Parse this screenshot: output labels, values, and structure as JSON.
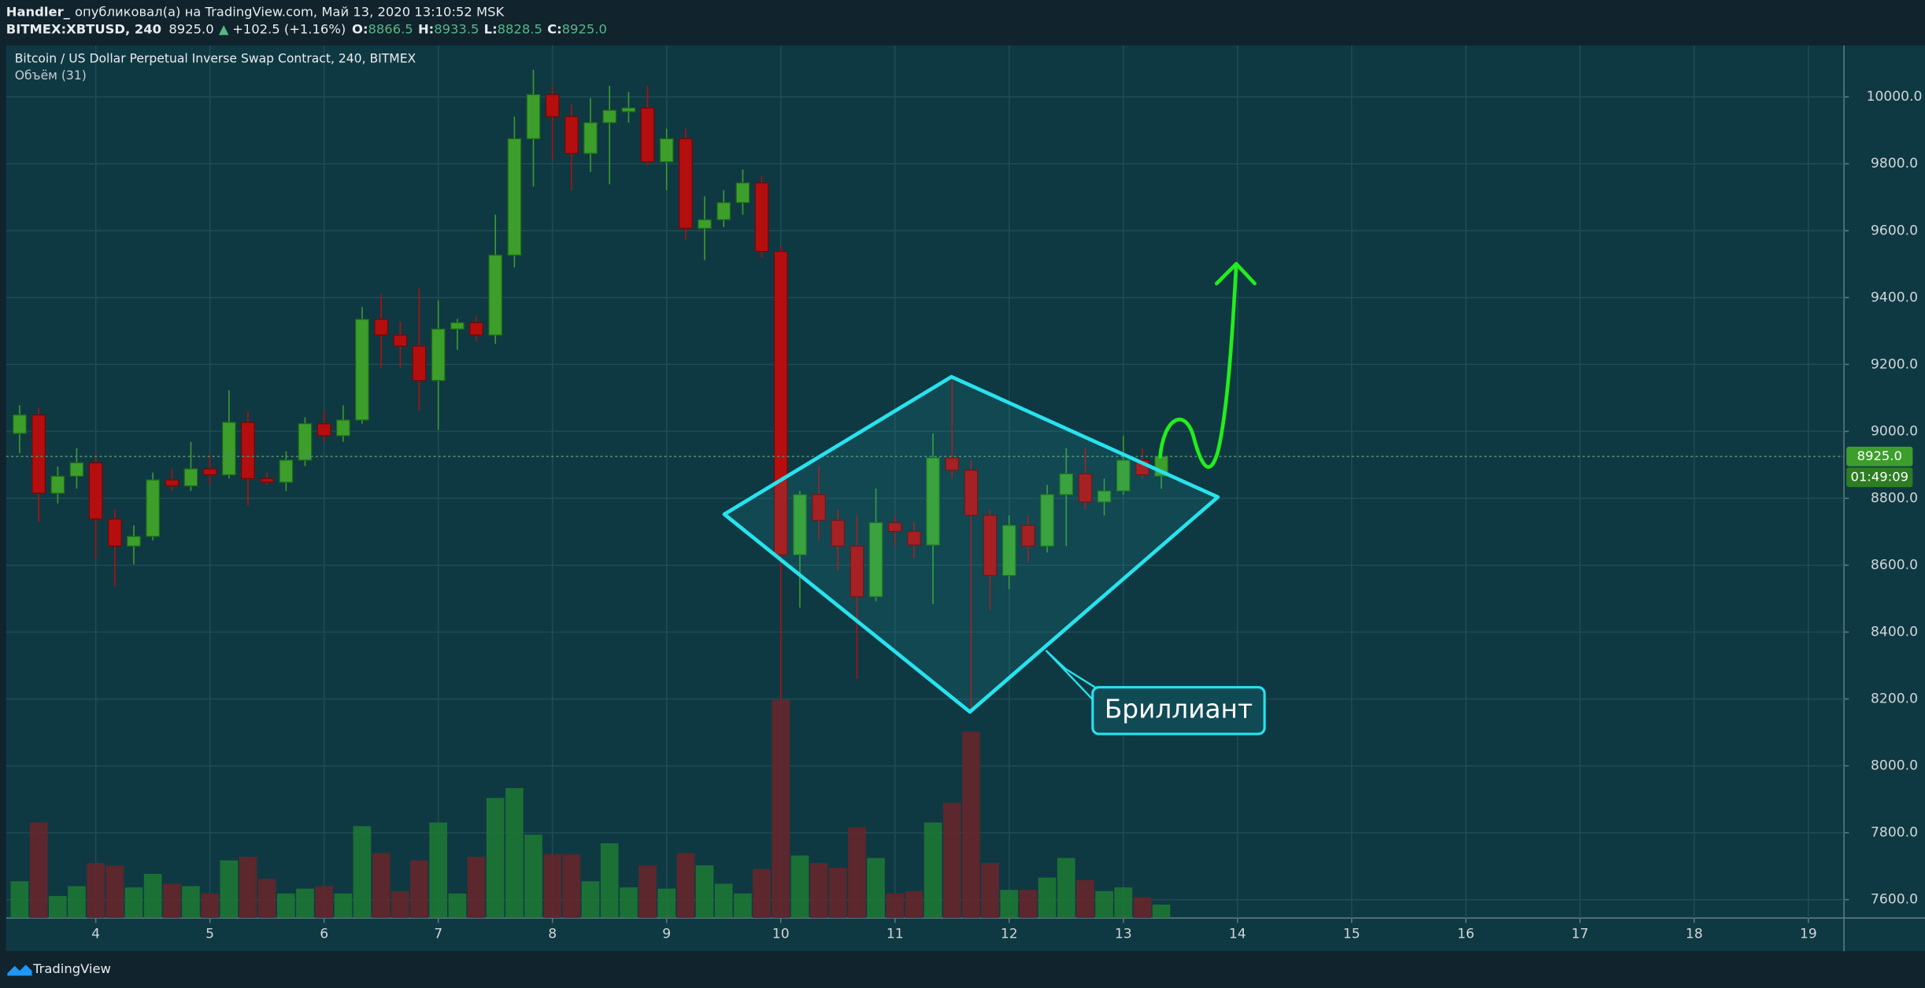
{
  "header": {
    "author": "Handler_",
    "text": "опубликовал(а) на TradingView.com, Май 13, 2020 13:10:52 MSK",
    "symbol": "BITMEX:XBTUSD, 240",
    "last": "8925.0",
    "change_arrow": "▲",
    "change": "+102.5 (+1.16%)",
    "ohlc": [
      {
        "label": "O:",
        "value": "8866.5"
      },
      {
        "label": "H:",
        "value": "8933.5"
      },
      {
        "label": "L:",
        "value": "8828.5"
      },
      {
        "label": "C:",
        "value": "8925.0"
      }
    ]
  },
  "chart_data": {
    "type": "candlestick",
    "title": "Bitcoin / US Dollar Perpetual Inverse Swap Contract, 240, BITMEX",
    "volume_label": "Объём (31)",
    "x": [
      3.333,
      3.5,
      3.667,
      3.833,
      4,
      4.167,
      4.333,
      4.5,
      4.667,
      4.833,
      5,
      5.167,
      5.333,
      5.5,
      5.667,
      5.833,
      6,
      6.167,
      6.333,
      6.5,
      6.667,
      6.833,
      7,
      7.167,
      7.333,
      7.5,
      7.667,
      7.833,
      8,
      8.167,
      8.333,
      8.5,
      8.667,
      8.833,
      9,
      9.167,
      9.333,
      9.5,
      9.667,
      9.833,
      10,
      10.167,
      10.333,
      10.5,
      10.667,
      10.833,
      11,
      11.167,
      11.333,
      11.5,
      11.667,
      11.833,
      12,
      12.167,
      12.333,
      12.5,
      12.667,
      12.833,
      13,
      13.167,
      13.333
    ],
    "open": [
      8994,
      9049,
      8815,
      8866,
      8906,
      8738,
      8657,
      8686,
      8855,
      8837,
      8888,
      8870,
      9027,
      8859,
      8848,
      8914,
      9023,
      8987,
      9034,
      9335,
      9288,
      9255,
      9152,
      9306,
      9325,
      9288,
      9527,
      9875,
      10007,
      9941,
      9831,
      9923,
      9956,
      9967,
      9806,
      9875,
      9607,
      9633,
      9684,
      9743,
      9538,
      8631,
      8811,
      8734,
      8657,
      8506,
      8727,
      8701,
      8660,
      8921,
      8884,
      8749,
      8569,
      8719,
      8657,
      8811,
      8873,
      8789,
      8822,
      8914,
      8866.5
    ],
    "high": [
      9078,
      9071,
      8895,
      8950,
      8932,
      8767,
      8719,
      8877,
      8888,
      8969,
      8932,
      9123,
      9060,
      8877,
      8940,
      9042,
      9060,
      9078,
      9372,
      9409,
      9328,
      9427,
      9391,
      9336,
      9343,
      9648,
      9941,
      10081,
      10033,
      9978,
      9996,
      10033,
      10015,
      10033,
      9905,
      9905,
      9703,
      9721,
      9783,
      9765,
      9556,
      8822,
      8895,
      8767,
      8749,
      8829,
      8749,
      8730,
      8994,
      9159,
      8914,
      8767,
      8749,
      8749,
      8840,
      8950,
      8950,
      8859,
      8987,
      8950,
      8933.5
    ],
    "low": [
      8935,
      8730,
      8785,
      8829,
      8620,
      8536,
      8602,
      8675,
      8822,
      8822,
      8841,
      8859,
      8778,
      8841,
      8822,
      8896,
      8969,
      8969,
      9023,
      9189,
      9189,
      9060,
      9005,
      9244,
      9270,
      9262,
      9490,
      9732,
      9813,
      9721,
      9776,
      9739,
      9923,
      9795,
      9721,
      9574,
      9512,
      9611,
      9648,
      9519,
      8198,
      8473,
      8675,
      8583,
      8260,
      8492,
      8657,
      8620,
      8484,
      8859,
      8161,
      8466,
      8528,
      8609,
      8638,
      8657,
      8767,
      8749,
      8811,
      8859,
      8828.5
    ],
    "close": [
      9049,
      8815,
      8866,
      8906,
      8738,
      8657,
      8686,
      8855,
      8837,
      8888,
      8870,
      9027,
      8859,
      8848,
      8914,
      9023,
      8987,
      9034,
      9335,
      9288,
      9255,
      9152,
      9306,
      9325,
      9288,
      9527,
      9875,
      10007,
      9941,
      9831,
      9923,
      9960,
      9967,
      9806,
      9875,
      9607,
      9633,
      9684,
      9743,
      9538,
      8631,
      8811,
      8734,
      8657,
      8506,
      8727,
      8701,
      8660,
      8921,
      8884,
      8749,
      8569,
      8719,
      8657,
      8811,
      8873,
      8789,
      8822,
      8914,
      8870,
      8925
    ],
    "volume": [
      30,
      78,
      18,
      26,
      45,
      43,
      25,
      36,
      28,
      26,
      20,
      47,
      50,
      32,
      20,
      24,
      26,
      20,
      75,
      53,
      22,
      47,
      78,
      20,
      50,
      98,
      106,
      68,
      52,
      52,
      30,
      61,
      25,
      43,
      24,
      53,
      43,
      28,
      20,
      40,
      178,
      51,
      45,
      41,
      74,
      49,
      20,
      22,
      78,
      94,
      152,
      45,
      23,
      23,
      33,
      49,
      31,
      22,
      25,
      17,
      11
    ],
    "up_color": "#3d9e2c",
    "down_color": "#b50e0e",
    "volume_up_color": "#1d7a34",
    "volume_down_color": "#6a2429",
    "xlim": [
      3.215,
      19.312
    ],
    "xticks": [
      4,
      5,
      6,
      7,
      8,
      9,
      10,
      11,
      12,
      13,
      14,
      15,
      16,
      17,
      18,
      19
    ],
    "ylim": [
      7545,
      10154
    ],
    "yticks": [
      {
        "value": 7600,
        "label": "7600.0"
      },
      {
        "value": 7800,
        "label": "7800.0"
      },
      {
        "value": 8000,
        "label": "8000.0"
      },
      {
        "value": 8200,
        "label": "8200.0"
      },
      {
        "value": 8400,
        "label": "8400.0"
      },
      {
        "value": 8600,
        "label": "8600.0"
      },
      {
        "value": 8800,
        "label": "8800.0"
      },
      {
        "value": 9000,
        "label": "9000.0"
      },
      {
        "value": 9200,
        "label": "9200.0"
      },
      {
        "value": 9400,
        "label": "9400.0"
      },
      {
        "value": 9600,
        "label": "9600.0"
      },
      {
        "value": 9800,
        "label": "9800.0"
      },
      {
        "value": 10000,
        "label": "10000.0"
      }
    ],
    "grid": true,
    "price_tag": {
      "value": 8925,
      "label": "8925.0"
    },
    "countdown": "01:49:09",
    "annotation": "Бриллиант"
  },
  "footer": {
    "brand": "TradingView"
  }
}
